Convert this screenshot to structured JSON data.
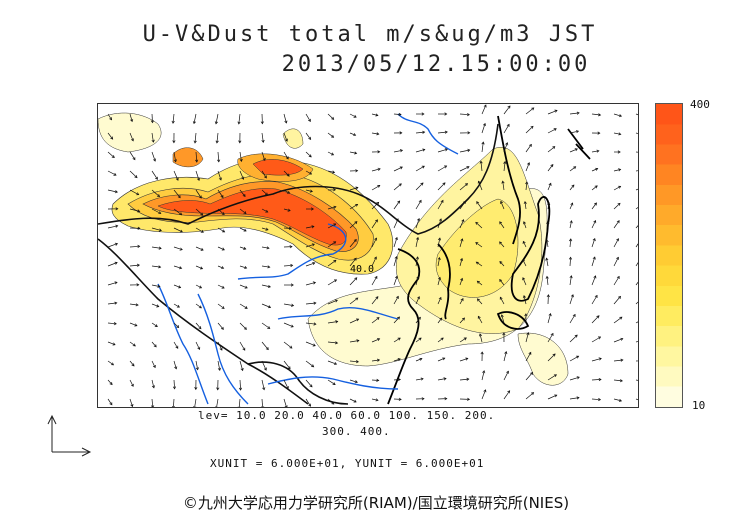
{
  "title": {
    "line1": "U-V&Dust total m/s&ug/m3 JST",
    "line2": "2013/05/12.15:00:00"
  },
  "colorbar": {
    "max_label": "400",
    "min_label": "10",
    "colors": [
      "#fffde0",
      "#fffac0",
      "#fff7a0",
      "#fff280",
      "#ffec60",
      "#ffe445",
      "#ffd93a",
      "#ffcc33",
      "#ffbb2e",
      "#ffaa2a",
      "#ff9826",
      "#ff8522",
      "#ff7220",
      "#ff621c",
      "#ff5518"
    ]
  },
  "levels": {
    "line1": "lev= 10.0 20.0 40.0 60.0 100. 150. 200.",
    "line2": "300. 400."
  },
  "units": "XUNIT = 6.000E+01, YUNIT = 6.000E+01",
  "contour_label": "40.0",
  "credit": "©九州大学応用力学研究所(RIAM)/国立環境研究所(NIES)",
  "map_colors": {
    "coast": "#000000",
    "river": "#1560e0",
    "border": "#666666",
    "wind": "#111111"
  }
}
